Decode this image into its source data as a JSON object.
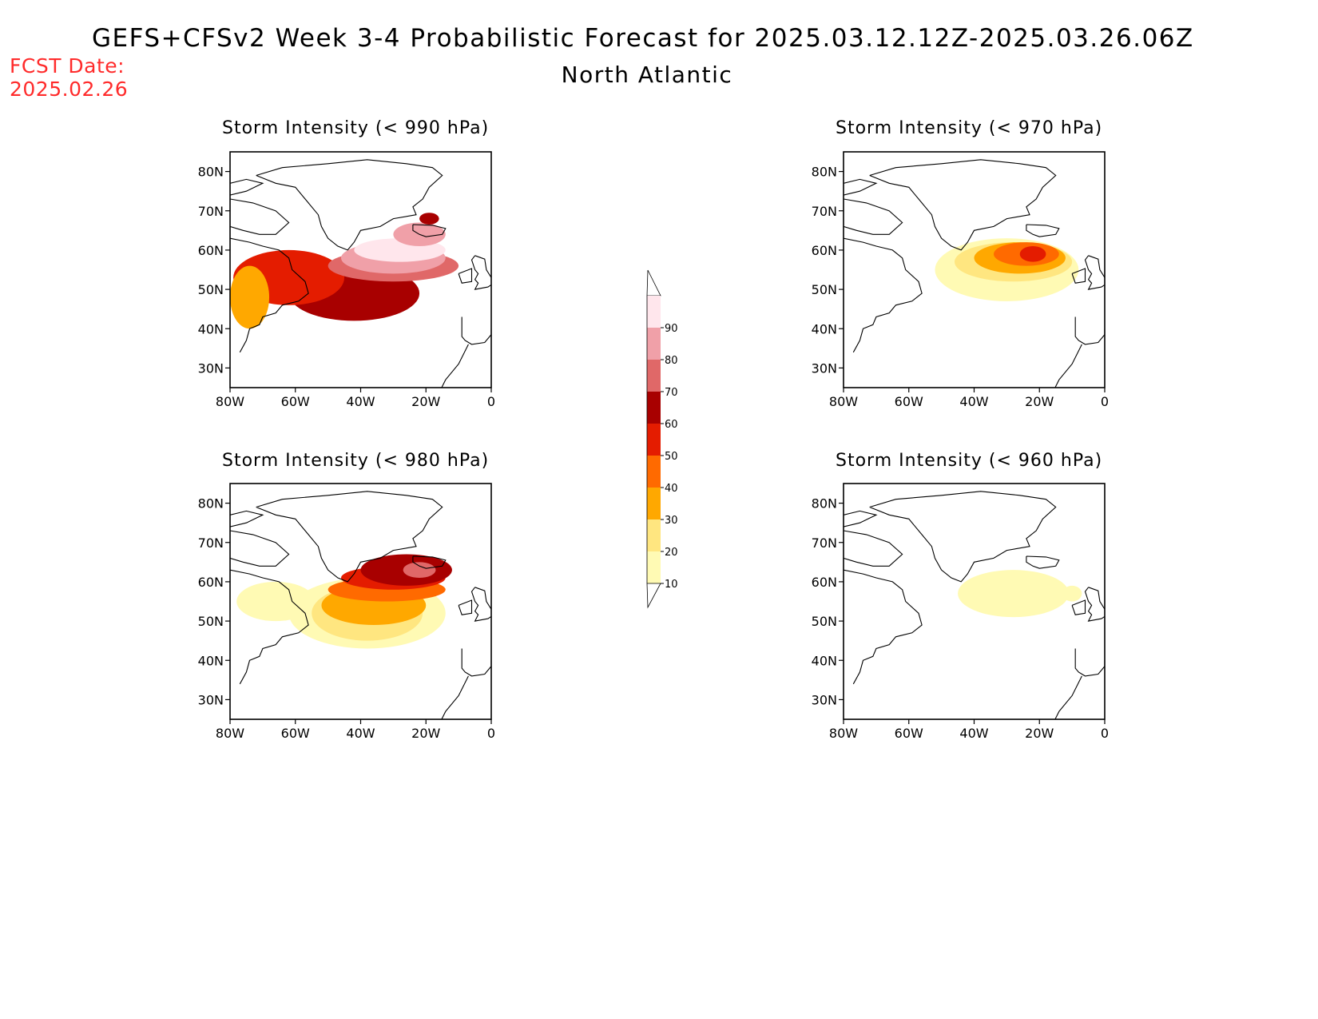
{
  "header": {
    "title": "GEFS+CFSv2 Week 3-4 Probabilistic Forecast for 2025.03.12.12Z-2025.03.26.06Z",
    "subtitle": "North Atlantic",
    "fcst_label": "FCST Date:",
    "fcst_date": "2025.02.26",
    "fcst_color": "#ff2b2b"
  },
  "axes": {
    "lon_ticks": [
      "80W",
      "60W",
      "40W",
      "20W",
      "0"
    ],
    "lat_ticks": [
      "80N",
      "70N",
      "60N",
      "50N",
      "40N",
      "30N"
    ]
  },
  "colorbar": {
    "levels": [
      "10",
      "20",
      "30",
      "40",
      "50",
      "60",
      "70",
      "80",
      "90"
    ],
    "colors": [
      "#fffab4",
      "#ffe680",
      "#ffa800",
      "#ff6a00",
      "#e41c00",
      "#a80000",
      "#e06868",
      "#f0a0a8",
      "#ffe6ec"
    ]
  },
  "panels": [
    {
      "title": "Storm Intensity (< 990 hPa)",
      "blobs": [
        {
          "cx": -42,
          "cy": 49,
          "rx": 20,
          "ry": 7,
          "level": 5
        },
        {
          "cx": -62,
          "cy": 53,
          "rx": 17,
          "ry": 7,
          "level": 4
        },
        {
          "cx": -74,
          "cy": 48,
          "rx": 6,
          "ry": 8,
          "level": 2
        },
        {
          "cx": -30,
          "cy": 56,
          "rx": 20,
          "ry": 4,
          "level": 6
        },
        {
          "cx": -30,
          "cy": 58,
          "rx": 16,
          "ry": 4,
          "level": 7
        },
        {
          "cx": -28,
          "cy": 60,
          "rx": 14,
          "ry": 3,
          "level": 8
        },
        {
          "cx": -22,
          "cy": 64,
          "rx": 8,
          "ry": 3,
          "level": 7
        },
        {
          "cx": -19,
          "cy": 68,
          "rx": 3,
          "ry": 1.5,
          "level": 5
        }
      ]
    },
    {
      "title": "Storm Intensity (< 970 hPa)",
      "blobs": [
        {
          "cx": -30,
          "cy": 55,
          "rx": 22,
          "ry": 8,
          "level": 0
        },
        {
          "cx": -28,
          "cy": 57,
          "rx": 18,
          "ry": 5,
          "level": 1
        },
        {
          "cx": -26,
          "cy": 58,
          "rx": 14,
          "ry": 4,
          "level": 2
        },
        {
          "cx": -24,
          "cy": 59,
          "rx": 10,
          "ry": 3,
          "level": 3
        },
        {
          "cx": -22,
          "cy": 59,
          "rx": 4,
          "ry": 2,
          "level": 4
        }
      ]
    },
    {
      "title": "Storm Intensity (< 980 hPa)",
      "blobs": [
        {
          "cx": -38,
          "cy": 52,
          "rx": 24,
          "ry": 9,
          "level": 0
        },
        {
          "cx": -66,
          "cy": 55,
          "rx": 12,
          "ry": 5,
          "level": 0
        },
        {
          "cx": -38,
          "cy": 52,
          "rx": 17,
          "ry": 7,
          "level": 1
        },
        {
          "cx": -36,
          "cy": 54,
          "rx": 16,
          "ry": 5,
          "level": 2
        },
        {
          "cx": -32,
          "cy": 58,
          "rx": 18,
          "ry": 3,
          "level": 3
        },
        {
          "cx": -30,
          "cy": 61,
          "rx": 16,
          "ry": 3,
          "level": 4
        },
        {
          "cx": -26,
          "cy": 63,
          "rx": 14,
          "ry": 4,
          "level": 5
        },
        {
          "cx": -22,
          "cy": 63,
          "rx": 5,
          "ry": 2,
          "level": 6
        }
      ]
    },
    {
      "title": "Storm Intensity (< 960 hPa)",
      "blobs": [
        {
          "cx": -28,
          "cy": 57,
          "rx": 17,
          "ry": 6,
          "level": 0
        },
        {
          "cx": -10,
          "cy": 57,
          "rx": 3,
          "ry": 2,
          "level": 0
        }
      ]
    }
  ]
}
